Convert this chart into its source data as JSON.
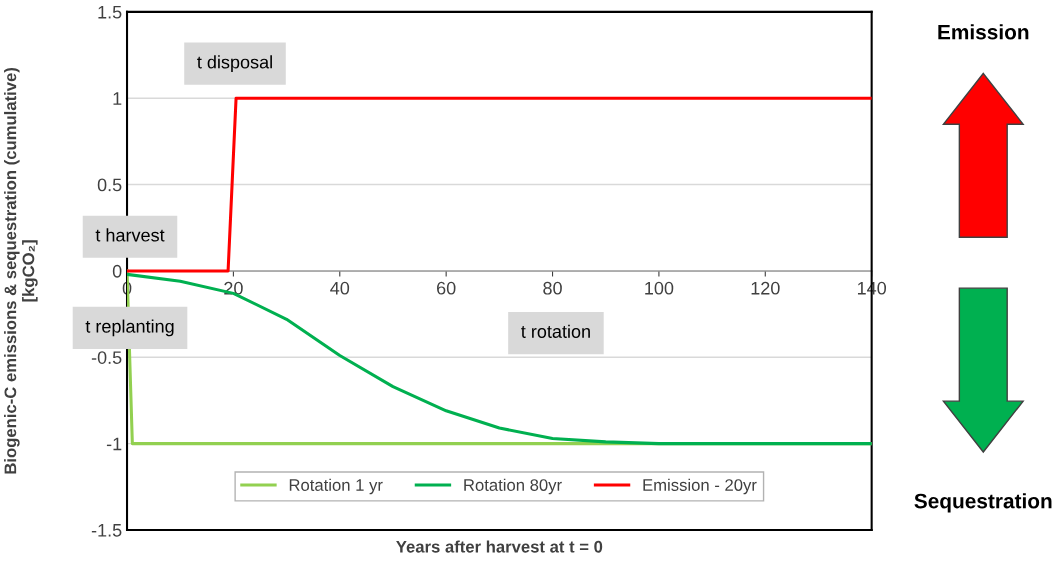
{
  "chart_data": {
    "type": "line",
    "xlabel": "Years after harvest at t = 0",
    "ylabel": "Biogenic-C emissions & sequestration (cumulative)\n[kgCO₂]",
    "xlim": [
      0,
      140
    ],
    "xticks": [
      0,
      20,
      40,
      60,
      80,
      100,
      120,
      140
    ],
    "ylim": [
      -1.5,
      1.5
    ],
    "yticks": [
      -1.5,
      -1,
      -0.5,
      0,
      0.5,
      1,
      1.5
    ],
    "grid": "y",
    "legend": "bottom",
    "marker": "none",
    "line_style": "solid",
    "series": [
      {
        "name": "Rotation 1 yr",
        "color": "#92d050",
        "x": [
          0,
          1,
          140
        ],
        "values": [
          0,
          -1,
          -1
        ]
      },
      {
        "name": "Rotation 80yr",
        "color": "#00b050",
        "x": [
          0,
          10,
          20,
          30,
          40,
          50,
          60,
          70,
          80,
          90,
          100,
          110,
          140
        ],
        "values": [
          -0.02,
          -0.06,
          -0.13,
          -0.28,
          -0.49,
          -0.67,
          -0.81,
          -0.91,
          -0.97,
          -0.99,
          -1,
          -1,
          -1
        ]
      },
      {
        "name": "Emission - 20yr",
        "color": "#ff0000",
        "x": [
          0,
          19,
          20.5,
          140
        ],
        "values": [
          0,
          0,
          1,
          1
        ]
      }
    ],
    "annotations": [
      "t disposal",
      "t harvest",
      "t replanting",
      "t rotation",
      "Emission",
      "Sequestration"
    ]
  }
}
